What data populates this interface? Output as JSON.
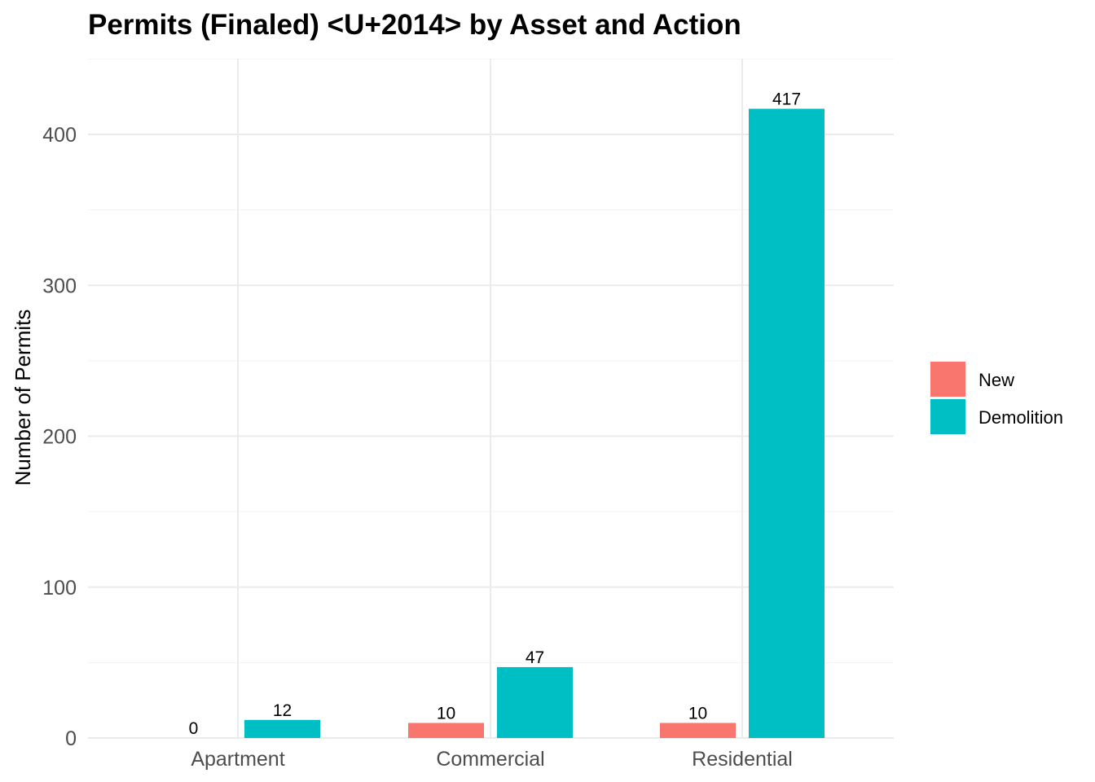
{
  "chart_data": {
    "type": "bar",
    "title": "Permits (Finaled) <U+2014> by Asset and Action",
    "xlabel": "",
    "ylabel": "Number of Permits",
    "categories": [
      "Apartment",
      "Commercial",
      "Residential"
    ],
    "series": [
      {
        "name": "New",
        "values": [
          0,
          10,
          10
        ],
        "color": "#f8766d"
      },
      {
        "name": "Demolition",
        "values": [
          12,
          47,
          417
        ],
        "color": "#00bfc4"
      }
    ],
    "ylim": [
      0,
      450
    ],
    "yticks": [
      0,
      100,
      200,
      300,
      400
    ],
    "grid": true,
    "legend_position": "right"
  }
}
